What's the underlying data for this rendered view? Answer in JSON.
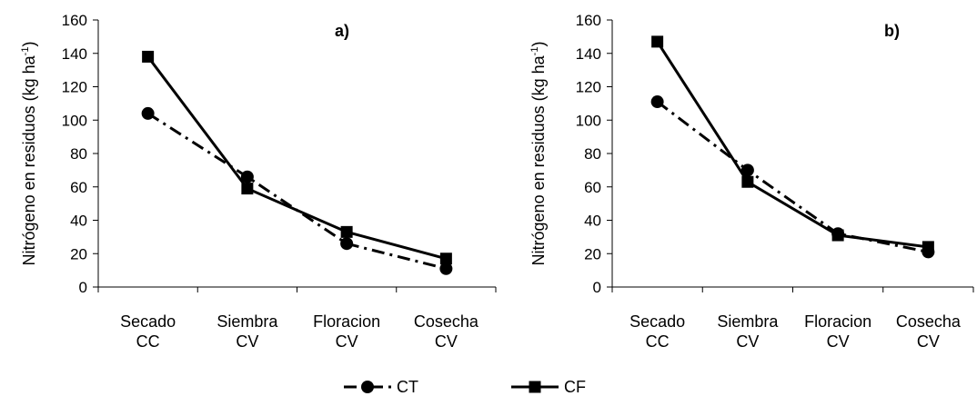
{
  "chart_data": [
    {
      "type": "line",
      "panel_label": "a)",
      "ylabel": "Nitrógeno en residuos (kg ha",
      "ylabel_sup": "-1",
      "ylabel_close": ")",
      "ylim": [
        0,
        160
      ],
      "yticks": [
        0,
        20,
        40,
        60,
        80,
        100,
        120,
        140,
        160
      ],
      "categories": [
        [
          "Secado",
          "CC"
        ],
        [
          "Siembra",
          "CV"
        ],
        [
          "Floracion",
          "CV"
        ],
        [
          "Cosecha",
          "CV"
        ]
      ],
      "series": [
        {
          "name": "CT",
          "values": [
            104,
            66,
            26,
            11
          ],
          "marker": "circle",
          "dash": "dash-dot"
        },
        {
          "name": "CF",
          "values": [
            138,
            59,
            33,
            17
          ],
          "marker": "square",
          "dash": "solid"
        }
      ]
    },
    {
      "type": "line",
      "panel_label": "b)",
      "ylabel": "Nitrógeno en residuos (kg ha",
      "ylabel_sup": "-1",
      "ylabel_close": ")",
      "ylim": [
        0,
        160
      ],
      "yticks": [
        0,
        20,
        40,
        60,
        80,
        100,
        120,
        140,
        160
      ],
      "categories": [
        [
          "Secado",
          "CC"
        ],
        [
          "Siembra",
          "CV"
        ],
        [
          "Floracion",
          "CV"
        ],
        [
          "Cosecha",
          "CV"
        ]
      ],
      "series": [
        {
          "name": "CT",
          "values": [
            111,
            70,
            32,
            21
          ],
          "marker": "circle",
          "dash": "dash-dot"
        },
        {
          "name": "CF",
          "values": [
            147,
            63,
            31,
            24
          ],
          "marker": "square",
          "dash": "solid"
        }
      ]
    }
  ],
  "legend": {
    "placement": "bottom-center",
    "items": [
      {
        "label": "CT",
        "marker": "circle",
        "dash": "dash-dot"
      },
      {
        "label": "CF",
        "marker": "square",
        "dash": "solid"
      }
    ]
  }
}
